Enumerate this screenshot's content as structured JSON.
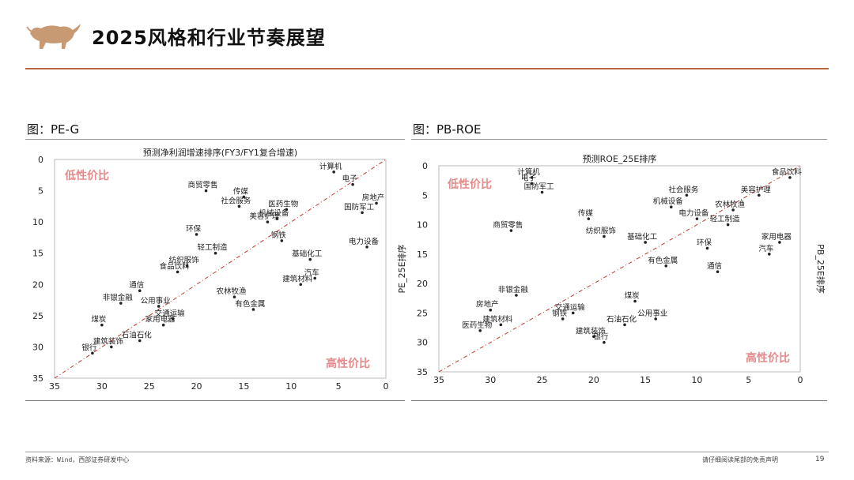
{
  "page": {
    "title": "2025风格和行业节奏展望",
    "footer_source": "资料来源：Wind，西部证券研发中心",
    "footer_disclaimer": "请仔细阅读尾部的免责声明",
    "page_number": "19",
    "colors": {
      "accent": "#b8653a",
      "diagonal": "#c0392b",
      "zone_text": "#e58a8a"
    }
  },
  "chart_data": [
    {
      "caption": "图：PE-G",
      "type": "scatter",
      "title": "预测净利润增速排序(FY3/FY1复合增速)",
      "xlabel": "",
      "ylabel": "",
      "xlim": [
        35,
        0
      ],
      "ylim": [
        0,
        35
      ],
      "xticks": [
        35,
        30,
        25,
        20,
        15,
        10,
        5,
        0
      ],
      "yticks": [
        0,
        5,
        10,
        15,
        20,
        25,
        30,
        35
      ],
      "diagonal": true,
      "zone_low": "低性价比",
      "zone_high": "高性价比",
      "points": [
        {
          "name": "计算机",
          "x": 5.5,
          "y": 2
        },
        {
          "name": "电子",
          "x": 3.5,
          "y": 4
        },
        {
          "name": "房地产",
          "x": 1.0,
          "y": 7
        },
        {
          "name": "国防军工",
          "x": 2.5,
          "y": 8.5
        },
        {
          "name": "商贸零售",
          "x": 19,
          "y": 5
        },
        {
          "name": "传媒",
          "x": 15,
          "y": 6
        },
        {
          "name": "医药生物",
          "x": 10.5,
          "y": 8
        },
        {
          "name": "社会服务",
          "x": 15.5,
          "y": 7.5
        },
        {
          "name": "机械设备",
          "x": 11.5,
          "y": 9.5
        },
        {
          "name": "美容护理",
          "x": 12.5,
          "y": 10
        },
        {
          "name": "环保",
          "x": 20,
          "y": 12
        },
        {
          "name": "轻工制造",
          "x": 18,
          "y": 15
        },
        {
          "name": "钢铁",
          "x": 11,
          "y": 13
        },
        {
          "name": "基础化工",
          "x": 8,
          "y": 16
        },
        {
          "name": "电力设备",
          "x": 2.0,
          "y": 14
        },
        {
          "name": "纺织服饰",
          "x": 21,
          "y": 17
        },
        {
          "name": "食品饮料",
          "x": 22,
          "y": 18
        },
        {
          "name": "汽车",
          "x": 7.5,
          "y": 19
        },
        {
          "name": "建筑材料",
          "x": 9,
          "y": 20
        },
        {
          "name": "非银金融",
          "x": 28,
          "y": 23
        },
        {
          "name": "通信",
          "x": 26,
          "y": 21
        },
        {
          "name": "农林牧渔",
          "x": 16,
          "y": 22
        },
        {
          "name": "有色金属",
          "x": 14,
          "y": 24
        },
        {
          "name": "公用事业",
          "x": 24,
          "y": 23.5
        },
        {
          "name": "交通运输",
          "x": 22.5,
          "y": 25.5
        },
        {
          "name": "家用电器",
          "x": 23.5,
          "y": 26.5
        },
        {
          "name": "煤炭",
          "x": 30,
          "y": 26.5
        },
        {
          "name": "石油石化",
          "x": 26,
          "y": 29
        },
        {
          "name": "建筑装饰",
          "x": 29,
          "y": 30
        },
        {
          "name": "银行",
          "x": 31,
          "y": 31
        }
      ]
    },
    {
      "caption": "图：PB-ROE",
      "type": "scatter",
      "title": "预测ROE_25E排序",
      "xlabel": "",
      "ylabel": "PE_25E排序",
      "ylabel_right": "PB_25E排序",
      "xlim": [
        35,
        0
      ],
      "ylim": [
        0,
        35
      ],
      "xticks": [
        35,
        30,
        25,
        20,
        15,
        10,
        5,
        0
      ],
      "yticks": [
        0,
        5,
        10,
        15,
        20,
        25,
        30,
        35
      ],
      "diagonal": true,
      "zone_low": "低性价比",
      "zone_high": "高性价比",
      "points": [
        {
          "name": "计算机",
          "x": 26,
          "y": 2
        },
        {
          "name": "电子",
          "x": 26,
          "y": 3
        },
        {
          "name": "国防军工",
          "x": 25,
          "y": 4.5
        },
        {
          "name": "食品饮料",
          "x": 1,
          "y": 2
        },
        {
          "name": "社会服务",
          "x": 11,
          "y": 5
        },
        {
          "name": "美容护理",
          "x": 4,
          "y": 5
        },
        {
          "name": "机械设备",
          "x": 12.5,
          "y": 7
        },
        {
          "name": "电力设备",
          "x": 10,
          "y": 9
        },
        {
          "name": "农林牧渔",
          "x": 6.5,
          "y": 7.5
        },
        {
          "name": "轻工制造",
          "x": 7,
          "y": 10
        },
        {
          "name": "传媒",
          "x": 20.5,
          "y": 9
        },
        {
          "name": "商贸零售",
          "x": 28,
          "y": 11
        },
        {
          "name": "家用电器",
          "x": 2,
          "y": 13
        },
        {
          "name": "纺织服饰",
          "x": 19,
          "y": 12
        },
        {
          "name": "基础化工",
          "x": 15,
          "y": 13
        },
        {
          "name": "有色金属",
          "x": 13,
          "y": 17
        },
        {
          "name": "环保",
          "x": 9,
          "y": 14
        },
        {
          "name": "通信",
          "x": 8,
          "y": 18
        },
        {
          "name": "汽车",
          "x": 3,
          "y": 15
        },
        {
          "name": "非银金融",
          "x": 27.5,
          "y": 22
        },
        {
          "name": "房地产",
          "x": 30,
          "y": 24.5
        },
        {
          "name": "建筑材料",
          "x": 29,
          "y": 27
        },
        {
          "name": "煤炭",
          "x": 16,
          "y": 23
        },
        {
          "name": "公用事业",
          "x": 14,
          "y": 26
        },
        {
          "name": "交通运输",
          "x": 22,
          "y": 25
        },
        {
          "name": "石油石化",
          "x": 17,
          "y": 27
        },
        {
          "name": "钢铁",
          "x": 23,
          "y": 26
        },
        {
          "name": "医药生物",
          "x": 31,
          "y": 28
        },
        {
          "name": "建筑装饰",
          "x": 20,
          "y": 29
        },
        {
          "name": "银行",
          "x": 19,
          "y": 30
        }
      ]
    }
  ]
}
